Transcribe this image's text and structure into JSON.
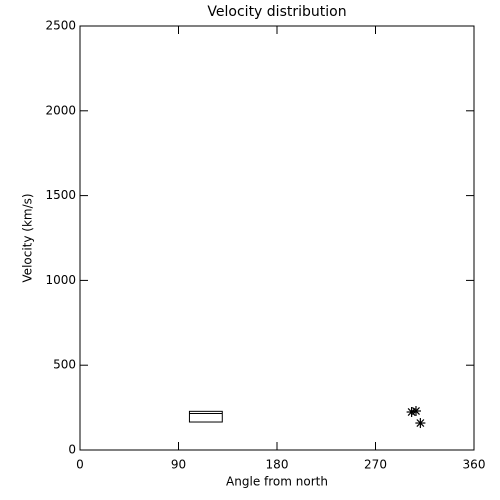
{
  "chart_data": {
    "type": "box",
    "title": "Velocity distribution",
    "x_label": "Angle from north",
    "y_label": "Velocity (km/s)",
    "xlim": [
      0,
      360
    ],
    "xticks": [
      0,
      90,
      180,
      270,
      360
    ],
    "ylim": [
      0,
      2500
    ],
    "yticks": [
      0,
      500,
      1000,
      1500,
      2000,
      2500
    ],
    "color": "#000000",
    "boxes": [
      {
        "x": [
          100,
          130
        ],
        "q1": 165,
        "median": 215,
        "q3": 228
      }
    ],
    "overlay": {
      "type": "scatter",
      "marker": "asterisk",
      "x": [
        303,
        307,
        311
      ],
      "y": [
        224,
        230,
        159
      ]
    }
  }
}
